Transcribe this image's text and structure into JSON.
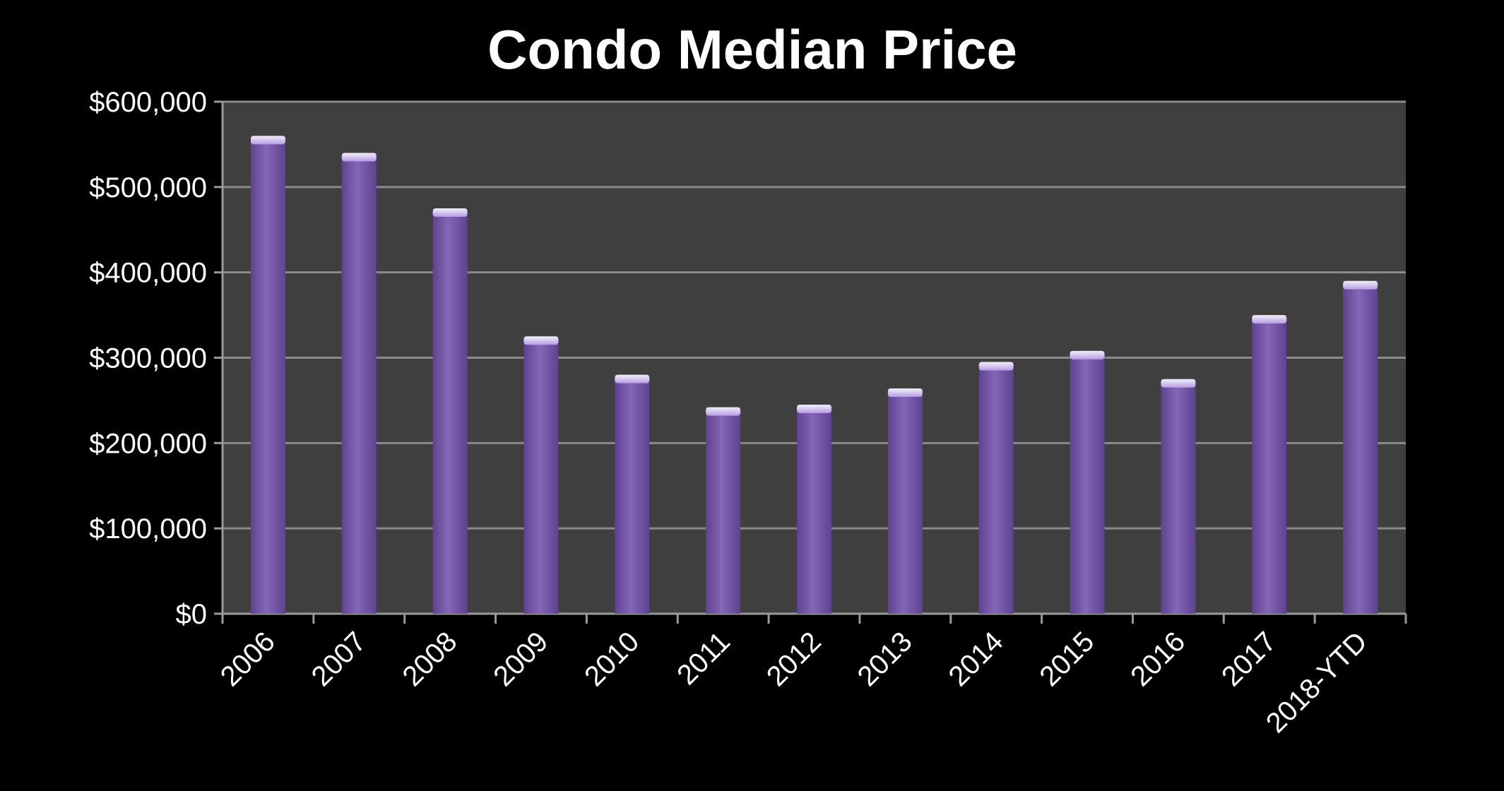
{
  "chart_data": {
    "type": "bar",
    "title": "Condo Median Price",
    "xlabel": "",
    "ylabel": "",
    "categories": [
      "2006",
      "2007",
      "2008",
      "2009",
      "2010",
      "2011",
      "2012",
      "2013",
      "2014",
      "2015",
      "2016",
      "2017",
      "2018-YTD"
    ],
    "values": [
      560000,
      540000,
      475000,
      325000,
      280000,
      242000,
      245000,
      264000,
      295000,
      308000,
      275000,
      350000,
      390000
    ],
    "ylim": [
      0,
      600000
    ],
    "yticks": [
      0,
      100000,
      200000,
      300000,
      400000,
      500000,
      600000
    ],
    "ytick_labels": [
      "$0",
      "$100,000",
      "$200,000",
      "$300,000",
      "$400,000",
      "$500,000",
      "$600,000"
    ],
    "grid": true,
    "legend": "none",
    "colors": {
      "background": "#000000",
      "plot_area": "#3f3f3f",
      "bar": "#8566b8",
      "bar_highlight": "#b59ae3",
      "bar_shadow": "#5e4390",
      "gridline": "#8a8a8a",
      "axis": "#9a9a9a",
      "text": "#ffffff"
    }
  }
}
